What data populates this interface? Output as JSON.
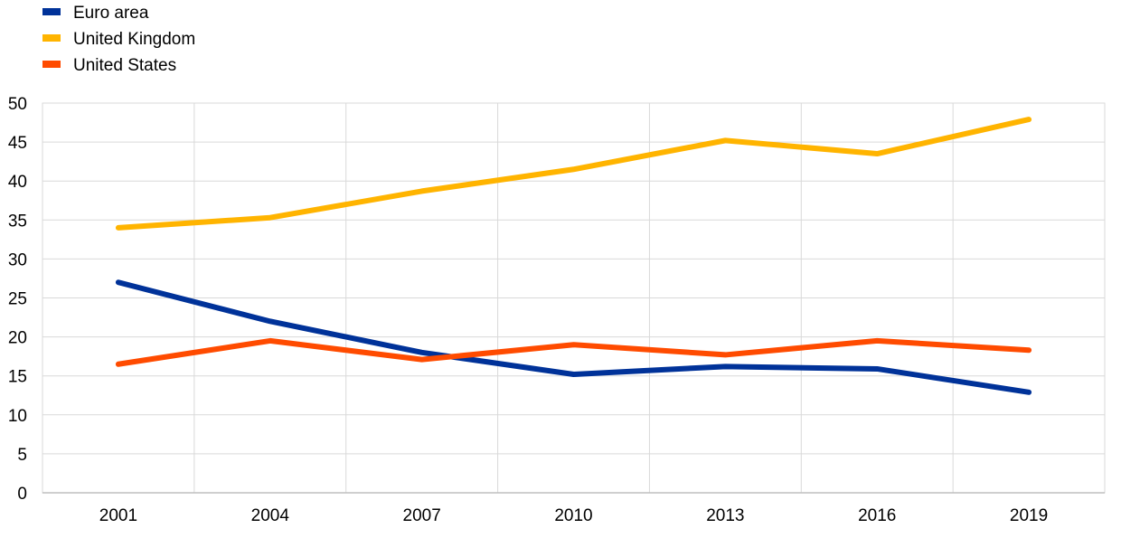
{
  "chart_data": {
    "type": "line",
    "title": "",
    "xlabel": "",
    "ylabel": "",
    "categories": [
      "2001",
      "2004",
      "2007",
      "2010",
      "2013",
      "2016",
      "2019"
    ],
    "ylim": [
      0,
      50
    ],
    "yticks": [
      0,
      5,
      10,
      15,
      20,
      25,
      30,
      35,
      40,
      45,
      50
    ],
    "grid": true,
    "legend_position": "top-left",
    "series": [
      {
        "name": "Euro area",
        "color": "#003299",
        "values": [
          27.0,
          22.0,
          18.0,
          15.2,
          16.2,
          15.9,
          12.9
        ]
      },
      {
        "name": "United Kingdom",
        "color": "#FFB400",
        "values": [
          34.0,
          35.3,
          38.7,
          41.5,
          45.2,
          43.5,
          47.9
        ]
      },
      {
        "name": "United States",
        "color": "#FF4B00",
        "values": [
          16.5,
          19.5,
          17.1,
          19.0,
          17.7,
          19.5,
          18.3
        ]
      }
    ]
  }
}
